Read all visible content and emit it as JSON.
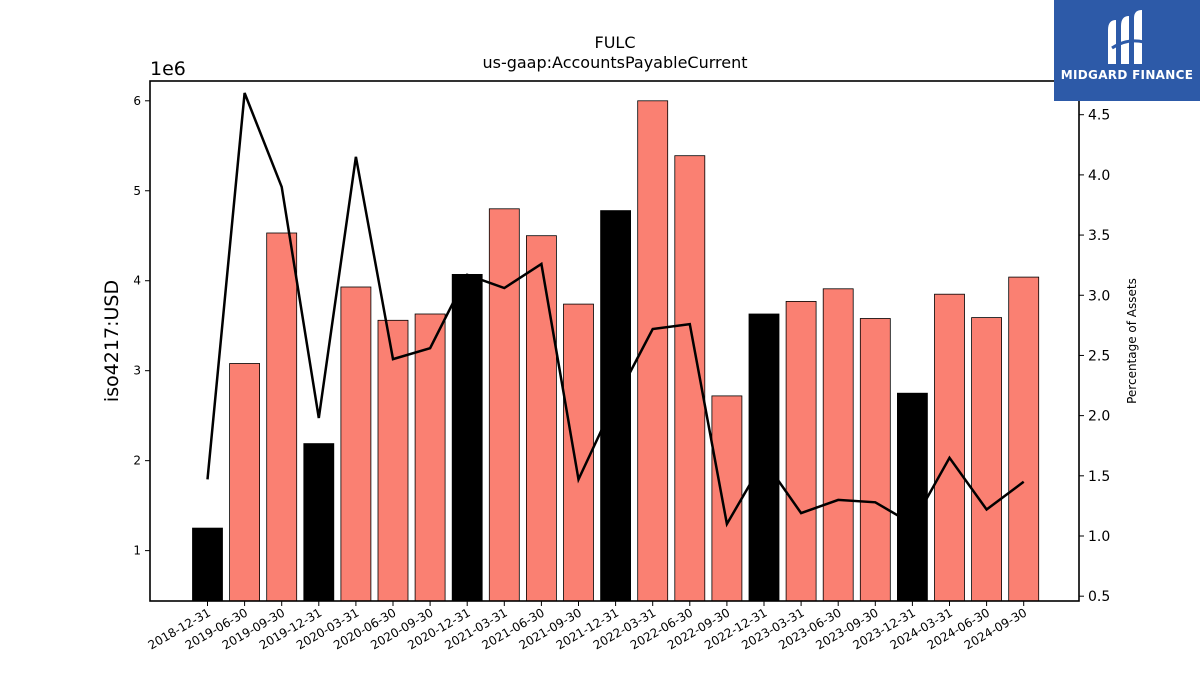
{
  "brand": {
    "name": "MIDGARD FINANCE",
    "logo_icon": "midgard-logo-icon",
    "background": "#2d5aa8"
  },
  "chart_data": {
    "type": "bar",
    "title": "FULC",
    "subtitle": "us-gaap:AccountsPayableCurrent",
    "ylabel": "iso4217:USD",
    "y_offset_label": "1e6",
    "y2label": "Percentage of Assets",
    "categories": [
      "2018-12-31",
      "2019-06-30",
      "2019-09-30",
      "2019-12-31",
      "2020-03-31",
      "2020-06-30",
      "2020-09-30",
      "2020-12-31",
      "2021-03-31",
      "2021-06-30",
      "2021-09-30",
      "2021-12-31",
      "2022-03-31",
      "2022-06-30",
      "2022-09-30",
      "2022-12-31",
      "2023-03-31",
      "2023-06-30",
      "2023-09-30",
      "2023-12-31",
      "2024-03-31",
      "2024-06-30",
      "2024-09-30"
    ],
    "ylim": [
      0.44,
      6.22
    ],
    "y_ticks": [
      1,
      2,
      3,
      4,
      5,
      6
    ],
    "y2lim": [
      0.46,
      4.78
    ],
    "y2_ticks": [
      0.5,
      1.0,
      1.5,
      2.0,
      2.5,
      3.0,
      3.5,
      4.0,
      4.5
    ],
    "grid": false,
    "series": [
      {
        "type": "bar",
        "values": [
          1.25,
          3.08,
          4.53,
          2.19,
          3.93,
          3.56,
          3.63,
          4.07,
          4.8,
          4.5,
          3.74,
          4.78,
          6.0,
          5.39,
          2.72,
          3.63,
          3.77,
          3.91,
          3.58,
          2.75,
          3.85,
          3.59,
          4.04
        ],
        "annual": [
          true,
          false,
          false,
          true,
          false,
          false,
          false,
          true,
          false,
          false,
          false,
          true,
          false,
          false,
          false,
          true,
          false,
          false,
          false,
          true,
          false,
          false,
          false
        ],
        "colors": {
          "annual": "#000000",
          "quarterly": "#fa8072"
        }
      },
      {
        "type": "line",
        "axis": "right",
        "color": "#000000",
        "values": [
          1.47,
          4.68,
          3.9,
          1.98,
          4.15,
          2.47,
          2.56,
          3.17,
          3.06,
          3.26,
          1.47,
          2.13,
          2.72,
          2.76,
          1.1,
          1.63,
          1.19,
          1.3,
          1.28,
          1.1,
          1.65,
          1.22,
          1.45
        ]
      }
    ]
  }
}
